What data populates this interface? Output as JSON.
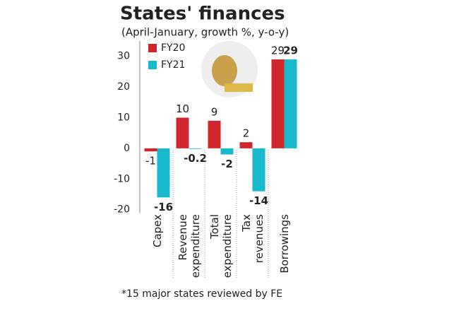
{
  "chart_data": {
    "type": "bar",
    "title": "States' finances",
    "subtitle": "(April-January, growth %, y-o-y)",
    "footnote": "*15 major states reviewed by FE",
    "categories": [
      "Capex",
      "Revenue\nexpenditure",
      "Total\nexpenditure",
      "Tax\nrevenues",
      "Borrowings"
    ],
    "series": [
      {
        "name": "FY20",
        "color": "#d2262d",
        "values": [
          -1,
          10,
          9,
          2,
          29
        ]
      },
      {
        "name": "FY21",
        "color": "#19b9cd",
        "values": [
          -16,
          -0.2,
          -2,
          -14,
          29
        ]
      }
    ],
    "ylim": [
      -21,
      35
    ],
    "yticks": [
      -20,
      -10,
      0,
      10,
      20,
      30
    ],
    "grid": false
  }
}
